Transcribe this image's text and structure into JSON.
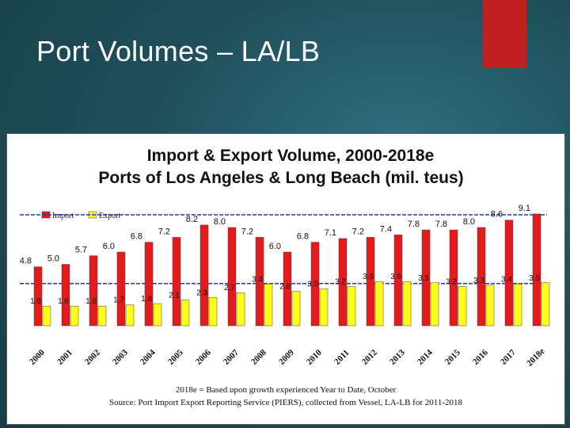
{
  "slide": {
    "title": "Port Volumes – LA/LB"
  },
  "colors": {
    "import": "#e41a1c",
    "export": "#ffff1a",
    "reference_line": "#2233cc",
    "accent_red": "#c0201f"
  },
  "chart_data": {
    "type": "bar",
    "title_line1": "Import & Export  Volume, 2000-2018e",
    "title_line2": "Ports of Los Angeles & Long Beach (mil. teus)",
    "categories": [
      "2000",
      "2001",
      "2002",
      "2003",
      "2004",
      "2005",
      "2006",
      "2007",
      "2008",
      "2009",
      "2010",
      "2011",
      "2012",
      "2013",
      "2014",
      "2015",
      "2016",
      "2017",
      "2018e"
    ],
    "series": [
      {
        "name": "Import",
        "values": [
          4.8,
          5.0,
          5.7,
          6.0,
          6.8,
          7.2,
          8.2,
          8.0,
          7.2,
          6.0,
          6.8,
          7.1,
          7.2,
          7.4,
          7.8,
          7.8,
          8.0,
          8.6,
          9.1
        ],
        "labels": [
          "4.8",
          "5.0",
          "5.7",
          "6.0",
          "6.8",
          "7.2",
          "8.2",
          "8.0",
          "7.2",
          "6.0",
          "6.8",
          "7.1",
          "7.2",
          "7.4",
          "7.8",
          "7.8",
          "8.0",
          "8.6",
          "9.1"
        ]
      },
      {
        "name": "Export",
        "values": [
          1.6,
          1.6,
          1.6,
          1.7,
          1.8,
          2.1,
          2.3,
          2.7,
          3.4,
          2.8,
          3.0,
          3.2,
          3.6,
          3.6,
          3.5,
          3.2,
          3.3,
          3.4,
          3.5
        ],
        "labels": [
          "1.6",
          "1.6",
          "1.6",
          "1.7",
          "1.8",
          "2.1",
          "2.3",
          "2.7",
          "3.4",
          "2.8",
          "3.0",
          "3.2",
          "3.6",
          "3.6",
          "3.5",
          "3.2",
          "3.3",
          "3.4",
          "3.5"
        ]
      }
    ],
    "reference_lines": [
      9.1,
      3.5
    ],
    "ylim": [
      0,
      10
    ],
    "legend_position": "top-left",
    "notes": [
      "2018e = Based upon growth experienced Year to Date, October",
      "Source:  Port Import Export Reporting Service (PIERS), collected from Vessel, LA-LB for 2011-2018"
    ]
  }
}
